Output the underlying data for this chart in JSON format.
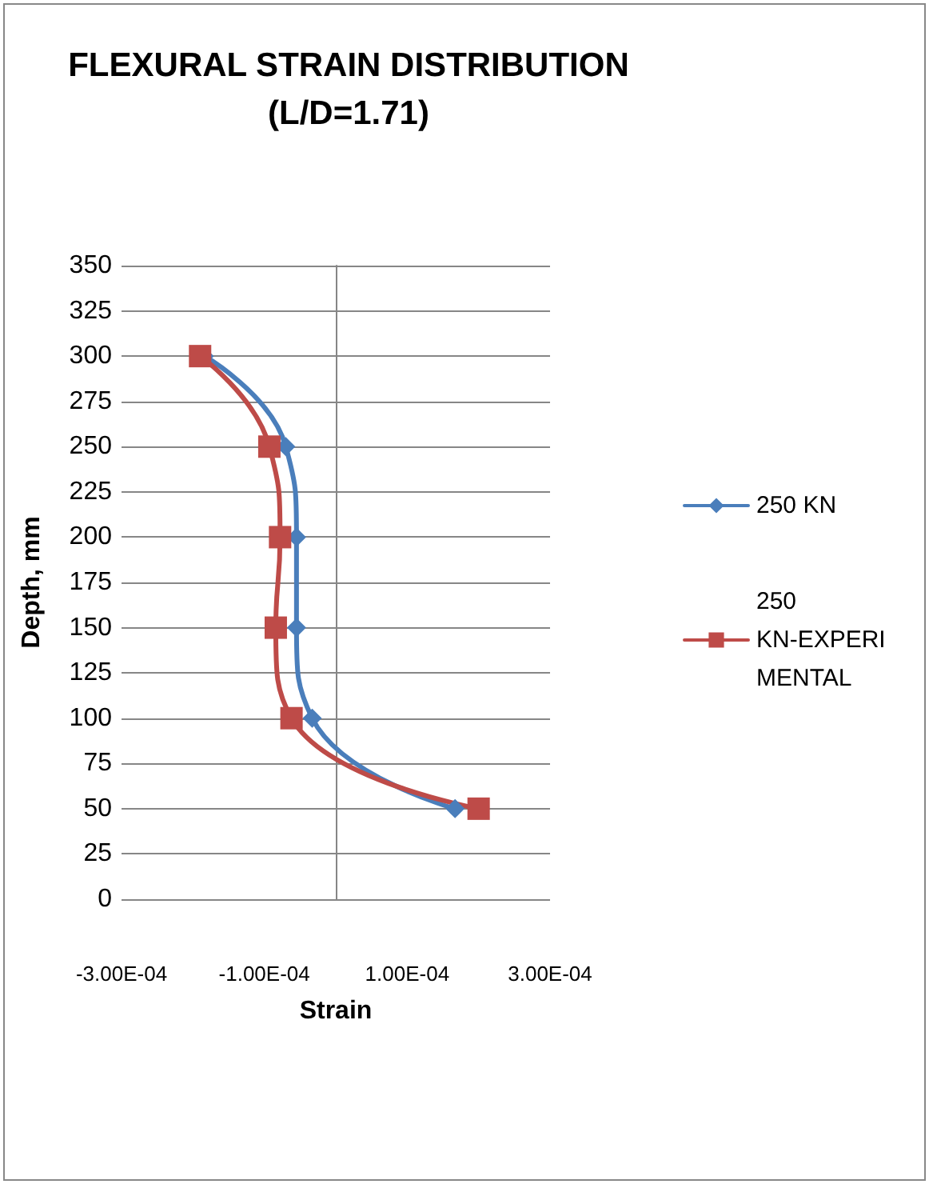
{
  "chart_data": {
    "type": "line",
    "title": "FLEXURAL STRAIN DISTRIBUTION\n(L/D=1.71)",
    "xlabel": "Strain",
    "ylabel": "Depth, mm",
    "series": [
      {
        "name": "250 KN",
        "color": "#4a7ebb",
        "marker": "diamond",
        "x": [
          -0.000184,
          -7e-05,
          -5.5e-05,
          -5.5e-05,
          -3.3e-05,
          0.000167
        ],
        "values": [
          300,
          250,
          200,
          150,
          100,
          50
        ]
      },
      {
        "name": "250 KN-EXPERIMENTAL",
        "color": "#be4b48",
        "marker": "square",
        "x": [
          -0.00019,
          -9.3e-05,
          -7.8e-05,
          -8.4e-05,
          -6.2e-05,
          0.0002
        ],
        "values": [
          300,
          250,
          200,
          150,
          100,
          50
        ]
      }
    ],
    "xlim": [
      -0.0003,
      0.0003
    ],
    "xticks": [
      {
        "value": -0.0003,
        "label": "-3.00E-04"
      },
      {
        "value": -0.0001,
        "label": "-1.00E-04"
      },
      {
        "value": 0.0001,
        "label": "1.00E-04"
      },
      {
        "value": 0.0003,
        "label": "3.00E-04"
      }
    ],
    "ylim": [
      0,
      350
    ],
    "yticks": [
      0,
      25,
      50,
      75,
      100,
      125,
      150,
      175,
      200,
      225,
      250,
      275,
      300,
      325,
      350
    ],
    "grid": "y",
    "legend": "right"
  }
}
